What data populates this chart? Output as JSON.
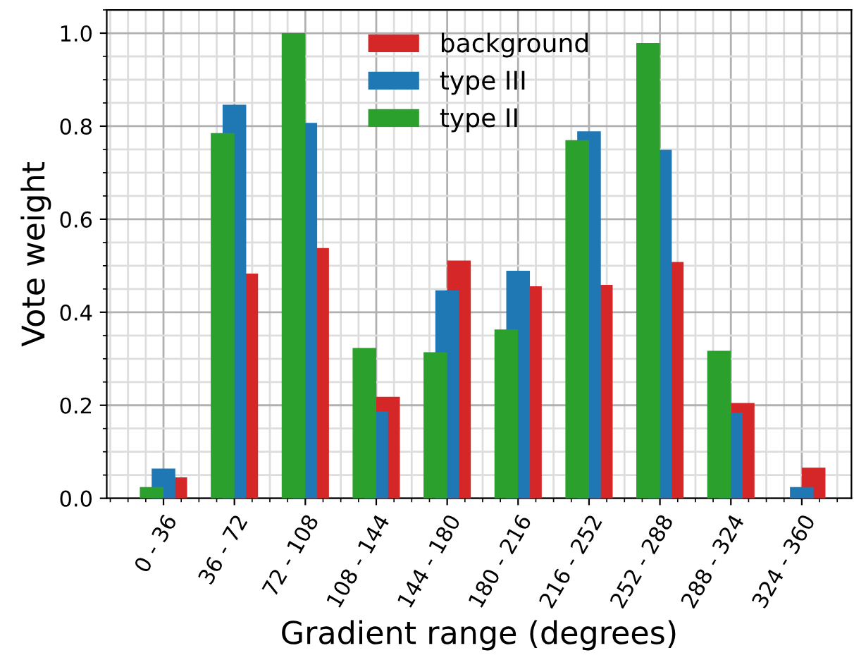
{
  "chart_data": {
    "type": "bar",
    "xlabel": "Gradient range (degrees)",
    "ylabel": "Vote weight",
    "categories": [
      "0 - 36",
      "36 - 72",
      "72 - 108",
      "108 - 144",
      "144 - 180",
      "180 - 216",
      "216 - 252",
      "252 - 288",
      "288 - 324",
      "324 - 360"
    ],
    "series": [
      {
        "name": "background",
        "color": "#d62728",
        "values": [
          0.045,
          0.483,
          0.538,
          0.218,
          0.511,
          0.456,
          0.459,
          0.508,
          0.205,
          0.066
        ]
      },
      {
        "name": "type III",
        "color": "#1f77b4",
        "values": [
          0.064,
          0.846,
          0.807,
          0.187,
          0.447,
          0.489,
          0.789,
          0.749,
          0.184,
          0.024
        ]
      },
      {
        "name": "type II",
        "color": "#2ca02c",
        "values": [
          0.024,
          0.785,
          1.0,
          0.323,
          0.314,
          0.363,
          0.77,
          0.979,
          0.317,
          0
        ]
      }
    ],
    "ylim": [
      0,
      1.05
    ],
    "yticks": [
      {
        "value": 0,
        "label": "0.0"
      },
      0.2,
      0.4,
      0.6,
      0.8,
      {
        "value": 1,
        "label": "1.0"
      }
    ],
    "grid": true,
    "legend": "top"
  }
}
